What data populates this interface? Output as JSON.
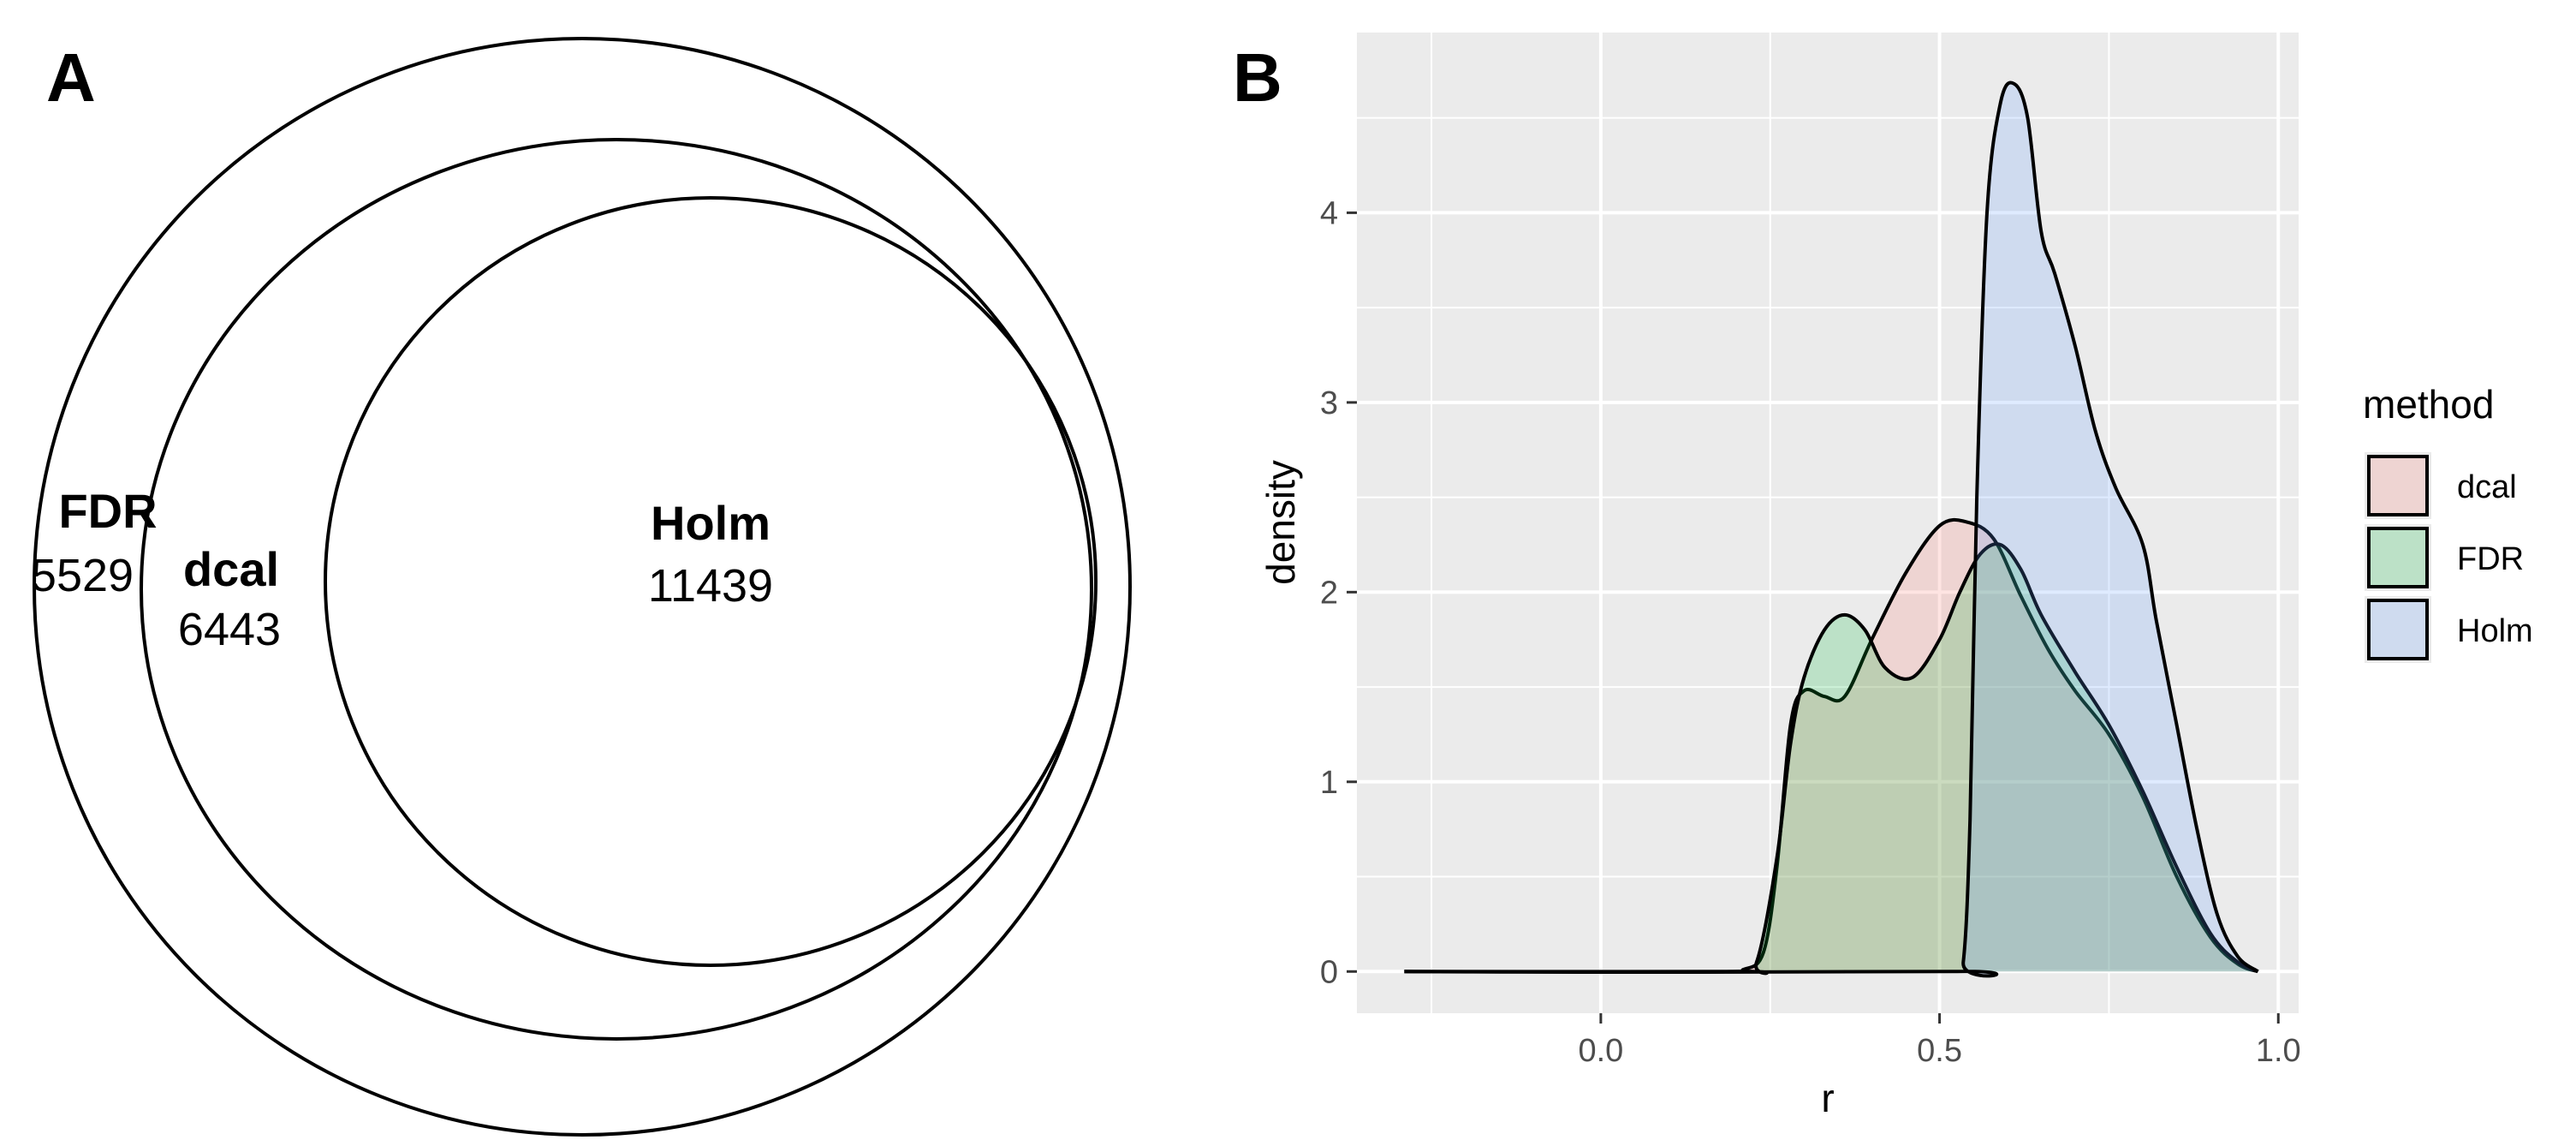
{
  "panels": {
    "a_label": "A",
    "b_label": "B"
  },
  "venn": {
    "sets": [
      {
        "name": "FDR",
        "count": "5529"
      },
      {
        "name": "dcal",
        "count": "6443"
      },
      {
        "name": "Holm",
        "count": "11439"
      }
    ]
  },
  "chart_data": {
    "type": "area",
    "xlabel": "r",
    "ylabel": "density",
    "xlim": [
      -0.36,
      1.03
    ],
    "ylim": [
      -0.22,
      4.95
    ],
    "x_ticks": [
      "0.0",
      "0.5",
      "1.0"
    ],
    "y_ticks": [
      "0",
      "1",
      "2",
      "3",
      "4"
    ],
    "grid": true,
    "legend": {
      "title": "method",
      "placement": "right",
      "entries": [
        "dcal",
        "FDR",
        "Holm"
      ]
    },
    "colors": {
      "dcal": "#f8766d",
      "FDR": "#00ba38",
      "Holm": "#619cff",
      "panel_bg": "#ebebeb",
      "grid": "#ffffff"
    },
    "series": [
      {
        "name": "dcal",
        "x": [
          -0.29,
          0.18,
          0.21,
          0.24,
          0.26,
          0.28,
          0.3,
          0.33,
          0.36,
          0.4,
          0.45,
          0.5,
          0.54,
          0.58,
          0.62,
          0.66,
          0.7,
          0.75,
          0.8,
          0.85,
          0.9,
          0.94,
          0.97
        ],
        "y": [
          0,
          0,
          0.01,
          0.1,
          0.55,
          1.3,
          1.48,
          1.45,
          1.45,
          1.75,
          2.1,
          2.35,
          2.37,
          2.28,
          1.98,
          1.7,
          1.48,
          1.25,
          0.92,
          0.5,
          0.18,
          0.04,
          0
        ]
      },
      {
        "name": "FDR",
        "x": [
          -0.29,
          0.2,
          0.23,
          0.26,
          0.28,
          0.3,
          0.33,
          0.36,
          0.39,
          0.42,
          0.46,
          0.5,
          0.53,
          0.56,
          0.59,
          0.62,
          0.65,
          0.7,
          0.75,
          0.8,
          0.85,
          0.9,
          0.94,
          0.97
        ],
        "y": [
          0,
          0,
          0.05,
          0.6,
          1.2,
          1.55,
          1.8,
          1.88,
          1.8,
          1.6,
          1.55,
          1.75,
          2.0,
          2.2,
          2.25,
          2.12,
          1.88,
          1.58,
          1.3,
          0.95,
          0.55,
          0.2,
          0.05,
          0
        ]
      },
      {
        "name": "Holm",
        "x": [
          -0.29,
          0.52,
          0.535,
          0.545,
          0.555,
          0.57,
          0.59,
          0.61,
          0.63,
          0.65,
          0.67,
          0.7,
          0.73,
          0.76,
          0.8,
          0.82,
          0.85,
          0.88,
          0.91,
          0.94,
          0.97
        ],
        "y": [
          0,
          0,
          0.05,
          0.8,
          2.5,
          4.0,
          4.58,
          4.68,
          4.5,
          3.9,
          3.68,
          3.3,
          2.85,
          2.55,
          2.25,
          1.85,
          1.3,
          0.75,
          0.3,
          0.08,
          0
        ]
      }
    ]
  }
}
